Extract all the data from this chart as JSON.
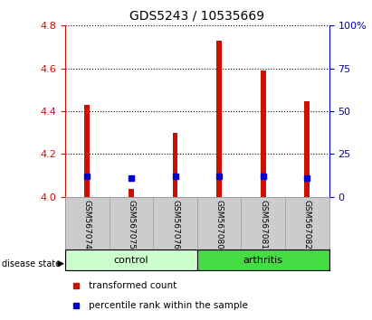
{
  "title": "GDS5243 / 10535669",
  "samples": [
    "GSM567074",
    "GSM567075",
    "GSM567076",
    "GSM567080",
    "GSM567081",
    "GSM567082"
  ],
  "groups": [
    "control",
    "control",
    "control",
    "arthritis",
    "arthritis",
    "arthritis"
  ],
  "red_top": [
    4.43,
    4.035,
    4.3,
    4.73,
    4.59,
    4.445
  ],
  "blue_pct": [
    12,
    11,
    12,
    12,
    12,
    11
  ],
  "ylim": [
    4.0,
    4.8
  ],
  "y_ticks": [
    4.0,
    4.2,
    4.4,
    4.6,
    4.8
  ],
  "right_ticks": [
    0,
    25,
    50,
    75,
    100
  ],
  "bar_bottom": 4.0,
  "bar_width": 0.12,
  "red_color": "#CC1100",
  "blue_color": "#0000CC",
  "control_color_light": "#CCFFCC",
  "control_color": "#88EE88",
  "arthritis_color": "#44DD44",
  "left_axis_color": "#CC1100",
  "right_axis_color": "#0000BB",
  "sample_bg": "#CCCCCC",
  "plot_bg": "#FFFFFF",
  "grid_color": "#000000",
  "disease_label": "disease state"
}
